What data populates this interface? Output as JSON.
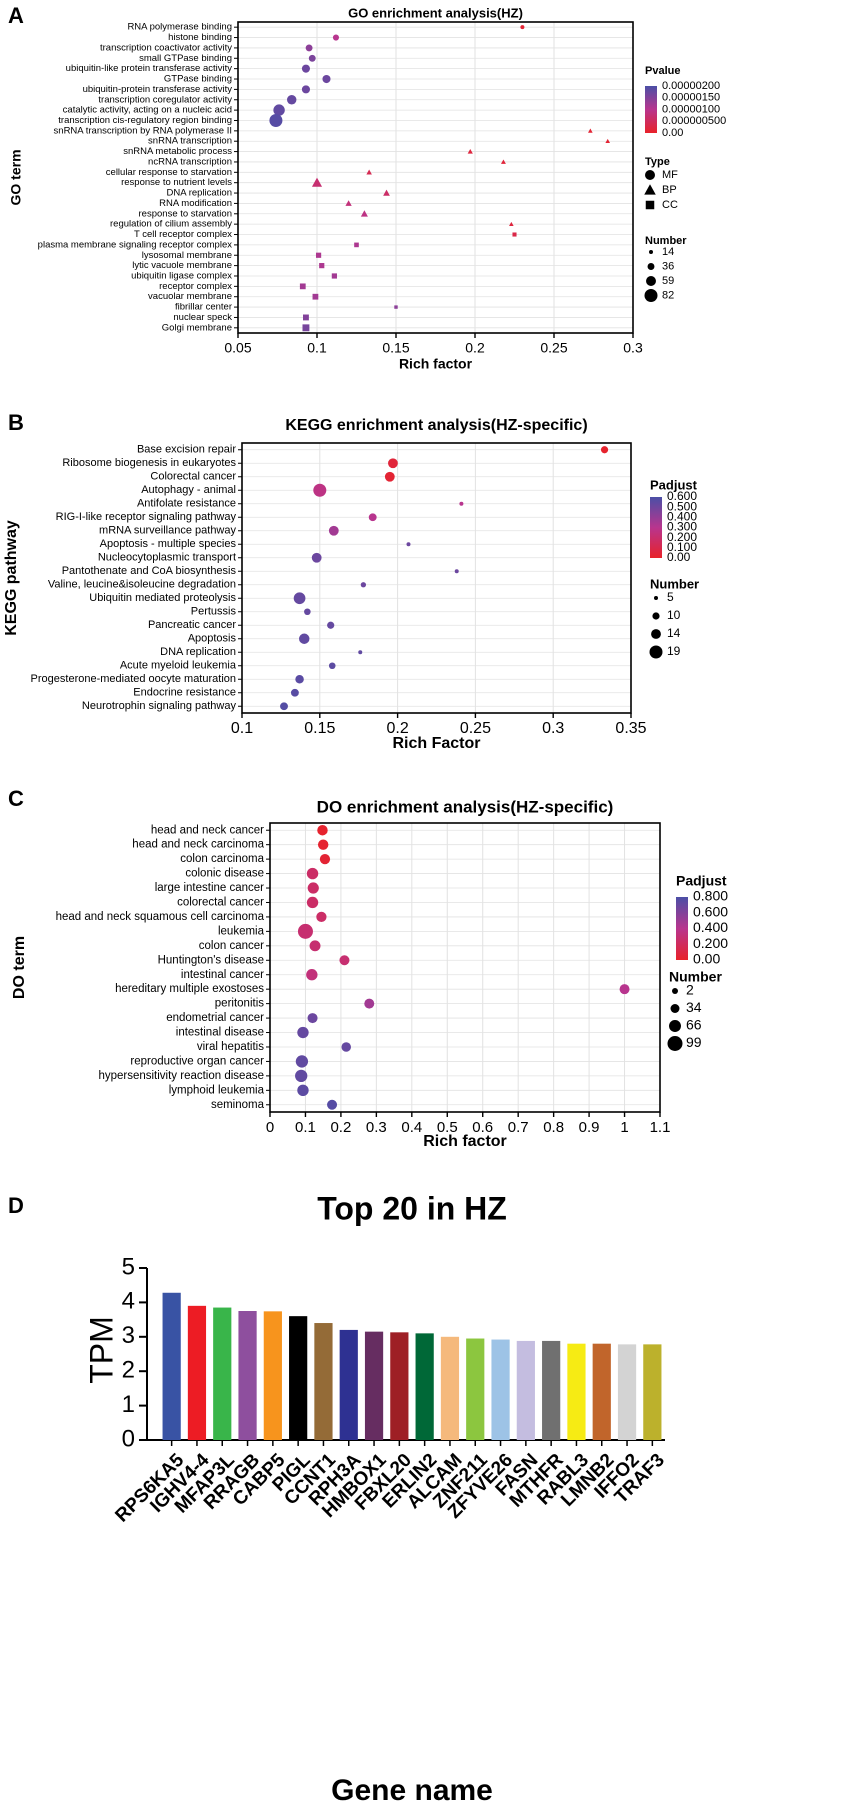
{
  "colors": {
    "low": "#e8222a",
    "mid": "#b8358e",
    "high": "#4b4fa6",
    "grid": "#e2e2e2"
  },
  "chart_data": [
    {
      "panel": "A",
      "type": "scatter",
      "title": "GO enrichment analysis(HZ)",
      "xlabel": "Rich factor",
      "ylabel": "GO term",
      "xlim": [
        0.05,
        0.3
      ],
      "xticks": [
        0.05,
        0.1,
        0.15,
        0.2,
        0.25,
        0.3
      ],
      "xtick_labels": [
        "0.05",
        "0.1",
        "0.15",
        "0.2",
        "0.25",
        "0.3"
      ],
      "color_legend": {
        "title": "Pvalue",
        "labels": [
          "0.00000200",
          "0.00000150",
          "0.00000100",
          "0.000000500",
          "0.00"
        ]
      },
      "shape_legend": {
        "title": "Type",
        "items": [
          {
            "shape": "circle",
            "label": "MF"
          },
          {
            "shape": "triangle",
            "label": "BP"
          },
          {
            "shape": "square",
            "label": "CC"
          }
        ]
      },
      "size_legend": {
        "title": "Number",
        "labels": [
          "14",
          "36",
          "59",
          "82"
        ]
      },
      "points": [
        {
          "term": "RNA polymerase binding",
          "x": 0.23,
          "n": 14,
          "c": 0.05,
          "shape": "circle"
        },
        {
          "term": "histone binding",
          "x": 0.112,
          "n": 30,
          "c": 0.5,
          "shape": "circle"
        },
        {
          "term": "transcription coactivator activity",
          "x": 0.095,
          "n": 36,
          "c": 0.7,
          "shape": "circle"
        },
        {
          "term": "small GTPase binding",
          "x": 0.097,
          "n": 36,
          "c": 0.78,
          "shape": "circle"
        },
        {
          "term": "ubiquitin-like protein transferase activity",
          "x": 0.093,
          "n": 45,
          "c": 0.85,
          "shape": "circle"
        },
        {
          "term": "GTPase binding",
          "x": 0.106,
          "n": 45,
          "c": 0.85,
          "shape": "circle"
        },
        {
          "term": "ubiquitin-protein transferase activity",
          "x": 0.093,
          "n": 45,
          "c": 0.85,
          "shape": "circle"
        },
        {
          "term": "transcription coregulator activity",
          "x": 0.084,
          "n": 55,
          "c": 0.88,
          "shape": "circle"
        },
        {
          "term": "catalytic activity, acting on a nucleic acid",
          "x": 0.076,
          "n": 70,
          "c": 0.9,
          "shape": "circle"
        },
        {
          "term": "transcription cis-regulatory region binding",
          "x": 0.074,
          "n": 82,
          "c": 0.95,
          "shape": "circle"
        },
        {
          "term": "snRNA transcription by RNA polymerase II",
          "x": 0.273,
          "n": 14,
          "c": 0.05,
          "shape": "triangle"
        },
        {
          "term": "snRNA transcription",
          "x": 0.284,
          "n": 14,
          "c": 0.05,
          "shape": "triangle"
        },
        {
          "term": "snRNA metabolic process",
          "x": 0.197,
          "n": 18,
          "c": 0.1,
          "shape": "triangle"
        },
        {
          "term": "ncRNA transcription",
          "x": 0.218,
          "n": 16,
          "c": 0.08,
          "shape": "triangle"
        },
        {
          "term": "cellular response to starvation",
          "x": 0.133,
          "n": 20,
          "c": 0.2,
          "shape": "triangle"
        },
        {
          "term": "response to nutrient levels",
          "x": 0.1,
          "n": 50,
          "c": 0.35,
          "shape": "triangle"
        },
        {
          "term": "DNA replication",
          "x": 0.144,
          "n": 28,
          "c": 0.3,
          "shape": "triangle"
        },
        {
          "term": "RNA modification",
          "x": 0.12,
          "n": 25,
          "c": 0.4,
          "shape": "triangle"
        },
        {
          "term": "response to starvation",
          "x": 0.13,
          "n": 30,
          "c": 0.45,
          "shape": "triangle"
        },
        {
          "term": "regulation of cilium assembly",
          "x": 0.223,
          "n": 14,
          "c": 0.1,
          "shape": "triangle"
        },
        {
          "term": "T cell receptor complex",
          "x": 0.225,
          "n": 20,
          "c": 0.15,
          "shape": "square"
        },
        {
          "term": "plasma membrane signaling receptor complex",
          "x": 0.125,
          "n": 25,
          "c": 0.55,
          "shape": "square"
        },
        {
          "term": "lysosomal membrane",
          "x": 0.101,
          "n": 30,
          "c": 0.55,
          "shape": "square"
        },
        {
          "term": "lytic vacuole membrane",
          "x": 0.103,
          "n": 30,
          "c": 0.55,
          "shape": "square"
        },
        {
          "term": "ubiquitin ligase complex",
          "x": 0.111,
          "n": 30,
          "c": 0.6,
          "shape": "square"
        },
        {
          "term": "receptor complex",
          "x": 0.091,
          "n": 35,
          "c": 0.6,
          "shape": "square"
        },
        {
          "term": "vacuolar membrane",
          "x": 0.099,
          "n": 35,
          "c": 0.6,
          "shape": "square"
        },
        {
          "term": "fibrillar center",
          "x": 0.15,
          "n": 14,
          "c": 0.7,
          "shape": "square"
        },
        {
          "term": "nuclear speck",
          "x": 0.093,
          "n": 36,
          "c": 0.75,
          "shape": "square"
        },
        {
          "term": "Golgi membrane",
          "x": 0.093,
          "n": 45,
          "c": 0.8,
          "shape": "square"
        }
      ]
    },
    {
      "panel": "B",
      "type": "scatter",
      "title": "KEGG enrichment analysis(HZ-specific)",
      "xlabel": "Rich Factor",
      "ylabel": "KEGG pathway",
      "xlim": [
        0.1,
        0.35
      ],
      "xticks": [
        0.1,
        0.15,
        0.2,
        0.25,
        0.3,
        0.35
      ],
      "xtick_labels": [
        "0.1",
        "0.15",
        "0.2",
        "0.25",
        "0.3",
        "0.35"
      ],
      "color_legend": {
        "title": "Padjust",
        "labels": [
          "0.600",
          "0.500",
          "0.400",
          "0.300",
          "0.200",
          "0.100",
          "0.00"
        ]
      },
      "size_legend": {
        "title": "Number",
        "labels": [
          "5",
          "10",
          "14",
          "19"
        ]
      },
      "points": [
        {
          "term": "Base excision repair",
          "x": 0.333,
          "n": 10,
          "c": 0.02
        },
        {
          "term": "Ribosome biogenesis in eukaryotes",
          "x": 0.197,
          "n": 14,
          "c": 0.08
        },
        {
          "term": "Colorectal cancer",
          "x": 0.195,
          "n": 14,
          "c": 0.05
        },
        {
          "term": "Autophagy - animal",
          "x": 0.15,
          "n": 19,
          "c": 0.45
        },
        {
          "term": "Antifolate resistance",
          "x": 0.241,
          "n": 5,
          "c": 0.5
        },
        {
          "term": "RIG-I-like receptor signaling pathway",
          "x": 0.184,
          "n": 11,
          "c": 0.5
        },
        {
          "term": "mRNA surveillance pathway",
          "x": 0.159,
          "n": 14,
          "c": 0.6
        },
        {
          "term": "Apoptosis - multiple species",
          "x": 0.207,
          "n": 5,
          "c": 0.85
        },
        {
          "term": "Nucleocytoplasmic transport",
          "x": 0.148,
          "n": 14,
          "c": 0.85
        },
        {
          "term": "Pantothenate and CoA biosynthesis",
          "x": 0.238,
          "n": 4,
          "c": 0.85
        },
        {
          "term": "Valine, leucine&isoleucine degradation",
          "x": 0.178,
          "n": 7,
          "c": 0.85
        },
        {
          "term": "Ubiquitin mediated proteolysis",
          "x": 0.137,
          "n": 17,
          "c": 0.88
        },
        {
          "term": "Pertussis",
          "x": 0.142,
          "n": 9,
          "c": 0.88
        },
        {
          "term": "Pancreatic cancer",
          "x": 0.157,
          "n": 10,
          "c": 0.88
        },
        {
          "term": "Apoptosis",
          "x": 0.14,
          "n": 15,
          "c": 0.9
        },
        {
          "term": "DNA replication",
          "x": 0.176,
          "n": 5,
          "c": 0.9
        },
        {
          "term": "Acute myeloid leukemia",
          "x": 0.158,
          "n": 9,
          "c": 0.92
        },
        {
          "term": "Progesterone-mediated oocyte maturation",
          "x": 0.137,
          "n": 12,
          "c": 0.93
        },
        {
          "term": "Endocrine resistance",
          "x": 0.134,
          "n": 11,
          "c": 0.94
        },
        {
          "term": "Neurotrophin signaling pathway",
          "x": 0.127,
          "n": 11,
          "c": 0.96
        }
      ]
    },
    {
      "panel": "C",
      "type": "scatter",
      "title": "DO enrichment analysis(HZ-specific)",
      "xlabel": "Rich factor",
      "ylabel": "DO term",
      "xlim": [
        0,
        1.1
      ],
      "xticks": [
        0,
        0.1,
        0.2,
        0.3,
        0.4,
        0.5,
        0.6,
        0.7,
        0.8,
        0.9,
        1,
        1.1
      ],
      "xtick_labels": [
        "0",
        "0.1",
        "0.2",
        "0.3",
        "0.4",
        "0.5",
        "0.6",
        "0.7",
        "0.8",
        "0.9",
        "1",
        "1.1"
      ],
      "color_legend": {
        "title": "Padjust",
        "labels": [
          "0.800",
          "0.600",
          "0.400",
          "0.200",
          "0.00"
        ]
      },
      "size_legend": {
        "title": "Number",
        "labels": [
          "2",
          "34",
          "66",
          "99"
        ]
      },
      "points": [
        {
          "term": "head and neck cancer",
          "x": 0.148,
          "n": 50,
          "c": 0.02
        },
        {
          "term": "head and neck carcinoma",
          "x": 0.15,
          "n": 50,
          "c": 0.03
        },
        {
          "term": "colon carcinoma",
          "x": 0.155,
          "n": 48,
          "c": 0.05
        },
        {
          "term": "colonic disease",
          "x": 0.12,
          "n": 60,
          "c": 0.3
        },
        {
          "term": "large intestine cancer",
          "x": 0.122,
          "n": 58,
          "c": 0.3
        },
        {
          "term": "colorectal cancer",
          "x": 0.12,
          "n": 60,
          "c": 0.3
        },
        {
          "term": "head and neck squamous cell carcinoma",
          "x": 0.145,
          "n": 48,
          "c": 0.3
        },
        {
          "term": "leukemia",
          "x": 0.1,
          "n": 99,
          "c": 0.35
        },
        {
          "term": "colon cancer",
          "x": 0.127,
          "n": 55,
          "c": 0.35
        },
        {
          "term": "Huntington's disease",
          "x": 0.21,
          "n": 45,
          "c": 0.35
        },
        {
          "term": "intestinal cancer",
          "x": 0.118,
          "n": 60,
          "c": 0.4
        },
        {
          "term": "hereditary multiple exostoses",
          "x": 1.0,
          "n": 45,
          "c": 0.5
        },
        {
          "term": "peritonitis",
          "x": 0.28,
          "n": 45,
          "c": 0.6
        },
        {
          "term": "endometrial cancer",
          "x": 0.12,
          "n": 45,
          "c": 0.85
        },
        {
          "term": "intestinal disease",
          "x": 0.093,
          "n": 60,
          "c": 0.88
        },
        {
          "term": "viral hepatitis",
          "x": 0.215,
          "n": 40,
          "c": 0.88
        },
        {
          "term": "reproductive organ cancer",
          "x": 0.09,
          "n": 70,
          "c": 0.9
        },
        {
          "term": "hypersensitivity reaction disease",
          "x": 0.088,
          "n": 70,
          "c": 0.9
        },
        {
          "term": "lymphoid leukemia",
          "x": 0.093,
          "n": 60,
          "c": 0.92
        },
        {
          "term": "seminoma",
          "x": 0.175,
          "n": 45,
          "c": 0.95
        }
      ]
    },
    {
      "panel": "D",
      "type": "bar",
      "title": "Top 20 in HZ",
      "xlabel": "Gene name",
      "ylabel": "TPM",
      "ylim": [
        0,
        5
      ],
      "yticks": [
        "0",
        "1",
        "2",
        "3",
        "4",
        "5"
      ],
      "categories": [
        "RPS6KA5",
        "IGHV4-4",
        "MFAP3L",
        "RRAGB",
        "CABP5",
        "PIGL",
        "CCNT1",
        "RPH3A",
        "HMBOX1",
        "FBXL20",
        "ERLIN2",
        "ALCAM",
        "ZNF211",
        "ZFYVE26",
        "FASN",
        "MTHFR",
        "RABL3",
        "LMNB2",
        "IFFO2",
        "TRAF3"
      ],
      "values": [
        4.28,
        3.9,
        3.85,
        3.75,
        3.74,
        3.6,
        3.4,
        3.2,
        3.15,
        3.13,
        3.1,
        3.0,
        2.95,
        2.92,
        2.88,
        2.88,
        2.8,
        2.8,
        2.78,
        2.78
      ],
      "bar_colors": [
        "#3953a4",
        "#ed1c24",
        "#39b54a",
        "#8e4f9e",
        "#f7941d",
        "#000000",
        "#946b37",
        "#2e3192",
        "#662d61",
        "#9e1f25",
        "#006837",
        "#f5b97c",
        "#8cc63f",
        "#9dc3e6",
        "#c4bde0",
        "#707070",
        "#f6eb14",
        "#c1652b",
        "#d3d3d3",
        "#bcb12c"
      ]
    }
  ]
}
